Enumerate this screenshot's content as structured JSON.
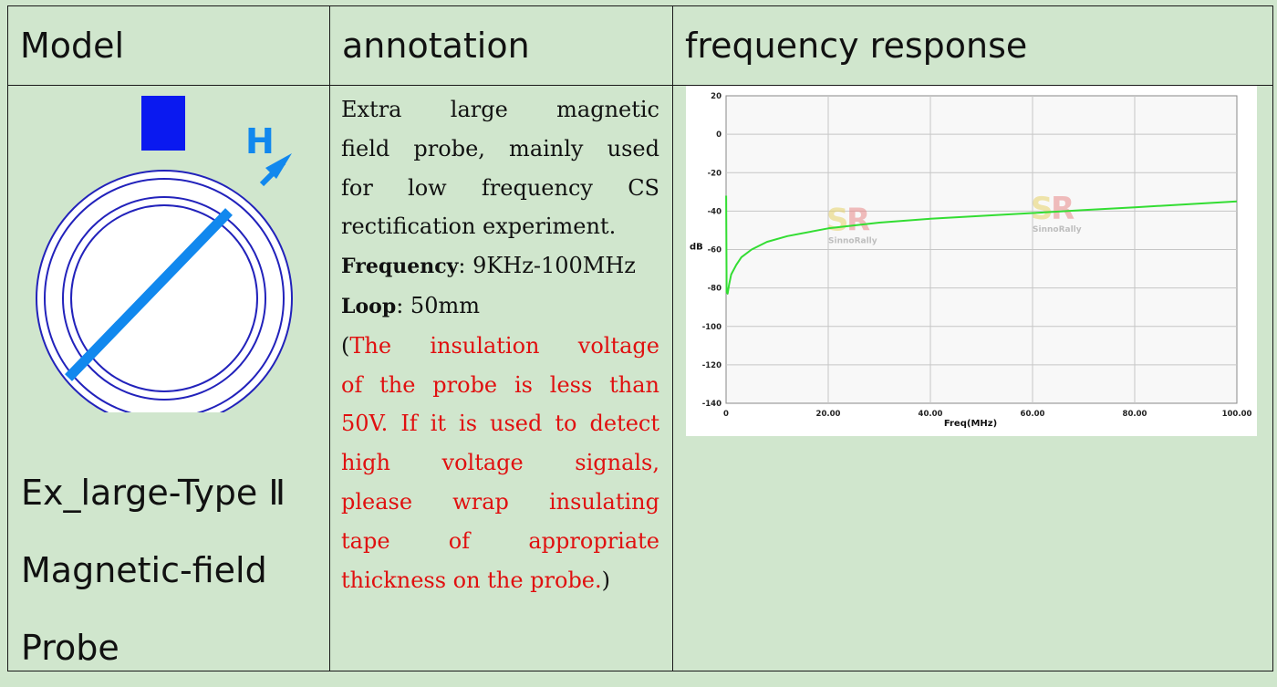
{
  "table": {
    "headers": [
      "Model",
      "annotation",
      "frequency response"
    ],
    "model_name_lines": [
      "Ex_large-Type Ⅱ",
      "Magnetic-field",
      "Probe"
    ],
    "probe_field_letter": "H",
    "annotation": {
      "desc_lines": [
        "Extra large magnetic",
        "field probe, mainly used",
        "for low frequency CS",
        "rectification experiment."
      ],
      "frequency_label": "Frequency",
      "frequency_value": ":  9KHz-100MHz",
      "loop_label": "Loop",
      "loop_value": ":  50mm",
      "note_open": "(",
      "note_lines": [
        "The  insulation voltage",
        "of the probe is less than",
        "50V. If it is used to detect",
        "high voltage signals,",
        "please wrap insulating",
        "tape of appropriate",
        "thickness on the probe."
      ],
      "note_close": ")"
    }
  },
  "chart_data": {
    "type": "line",
    "xlabel": "Freq(MHz)",
    "ylabel": "dB",
    "xlim": [
      0,
      100
    ],
    "ylim": [
      -140,
      20
    ],
    "x_ticks": [
      "0",
      "20.00",
      "40.00",
      "60.00",
      "80.00",
      "100.00"
    ],
    "y_ticks": [
      "20",
      "0",
      "-20",
      "-40",
      "-60",
      "-80",
      "-100",
      "-120",
      "-140"
    ],
    "grid": true,
    "watermark": "SinnoRally",
    "series": [
      {
        "color": "#33dd33",
        "x": [
          0.009,
          0.1,
          0.3,
          0.6,
          1,
          2,
          3,
          5,
          8,
          12,
          20,
          30,
          40,
          50,
          60,
          70,
          80,
          90,
          100
        ],
        "y": [
          -32,
          -82,
          -83,
          -78,
          -73,
          -68,
          -64,
          -60,
          -56,
          -53,
          -49,
          -46,
          -44,
          -42.5,
          -41,
          -39.5,
          -38,
          -36.5,
          -35
        ]
      }
    ]
  }
}
